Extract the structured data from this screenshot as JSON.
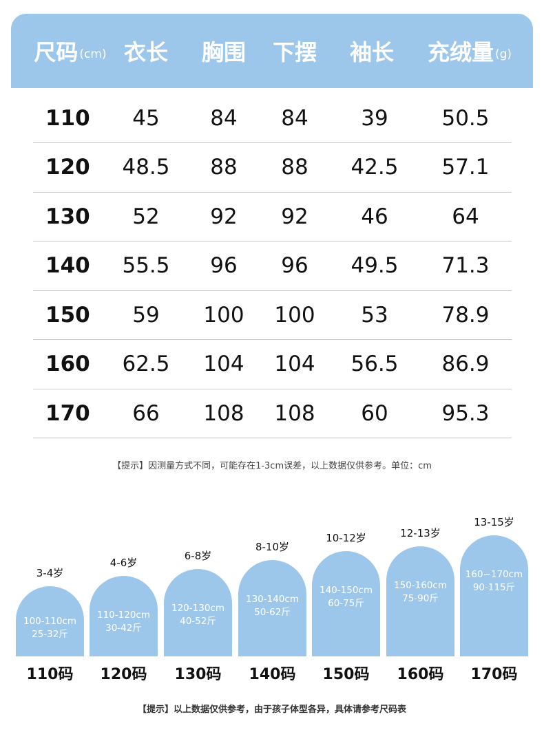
{
  "header": {
    "size": "尺码",
    "size_unit": "(cm)",
    "length": "衣长",
    "chest": "胸围",
    "hem": "下摆",
    "sleeve": "袖长",
    "fill": "充绒量",
    "fill_unit": "(g)"
  },
  "rows": [
    {
      "size": "110",
      "length": "45",
      "chest": "84",
      "hem": "84",
      "sleeve": "39",
      "fill": "50.5"
    },
    {
      "size": "120",
      "length": "48.5",
      "chest": "88",
      "hem": "88",
      "sleeve": "42.5",
      "fill": "57.1"
    },
    {
      "size": "130",
      "length": "52",
      "chest": "92",
      "hem": "92",
      "sleeve": "46",
      "fill": "64"
    },
    {
      "size": "140",
      "length": "55.5",
      "chest": "96",
      "hem": "96",
      "sleeve": "49.5",
      "fill": "71.3"
    },
    {
      "size": "150",
      "length": "59",
      "chest": "100",
      "hem": "100",
      "sleeve": "53",
      "fill": "78.9"
    },
    {
      "size": "160",
      "length": "62.5",
      "chest": "104",
      "hem": "104",
      "sleeve": "56.5",
      "fill": "86.9"
    },
    {
      "size": "170",
      "length": "66",
      "chest": "108",
      "hem": "108",
      "sleeve": "60",
      "fill": "95.3"
    }
  ],
  "note_table": "【提示】因测量方式不同，可能存在1-3cm误差，以上数据仅供参考。单位：cm",
  "recommend": [
    {
      "age": "3-4岁",
      "height": "100-110cm",
      "weight": "25-32斤",
      "code": "110码"
    },
    {
      "age": "4-6岁",
      "height": "110-120cm",
      "weight": "30-42斤",
      "code": "120码"
    },
    {
      "age": "6-8岁",
      "height": "120-130cm",
      "weight": "40-52斤",
      "code": "130码"
    },
    {
      "age": "8-10岁",
      "height": "130-140cm",
      "weight": "50-62斤",
      "code": "140码"
    },
    {
      "age": "10-12岁",
      "height": "140-150cm",
      "weight": "60-75斤",
      "code": "150码"
    },
    {
      "age": "12-13岁",
      "height": "150-160cm",
      "weight": "75-90斤",
      "code": "160码"
    },
    {
      "age": "13-15岁",
      "height": "160~170cm",
      "weight": "90-115斤",
      "code": "170码"
    }
  ],
  "note_bottom": "【提示】以上数据仅供参考，由于孩子体型各异，具体请参考尺码表",
  "colors": {
    "accent": "#9cc7ea",
    "text": "#111111"
  }
}
